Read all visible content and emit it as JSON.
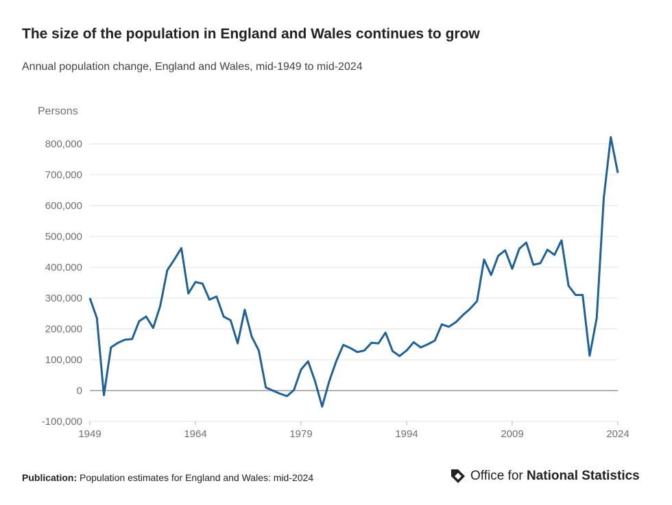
{
  "header": {
    "title": "The size of the population in England and Wales continues to grow",
    "subtitle": "Annual population change, England and Wales, mid-1949 to mid-2024"
  },
  "footer": {
    "publication_label": "Publication:",
    "publication_text": "Population estimates for England and Wales: mid-2024",
    "logo_text_prefix": "Office for ",
    "logo_text_bold": "National Statistics"
  },
  "chart_data": {
    "type": "line",
    "title": "The size of the population in England and Wales continues to grow",
    "subtitle": "Annual population change, England and Wales, mid-1949 to mid-2024",
    "ylabel": "Persons",
    "xlabel": "",
    "ylim": [
      -100000,
      800000
    ],
    "xlim": [
      1949,
      2024
    ],
    "yticks": [
      -100000,
      0,
      100000,
      200000,
      300000,
      400000,
      500000,
      600000,
      700000,
      800000
    ],
    "ytick_labels": [
      "-100,000",
      "0",
      "100,000",
      "200,000",
      "300,000",
      "400,000",
      "500,000",
      "600,000",
      "700,000",
      "800,000"
    ],
    "xticks": [
      1949,
      1964,
      1979,
      1994,
      2009,
      2024
    ],
    "xtick_labels": [
      "1949",
      "1964",
      "1979",
      "1994",
      "2009",
      "2024"
    ],
    "grid": true,
    "color": "#206095",
    "x": [
      1949,
      1950,
      1951,
      1952,
      1953,
      1954,
      1955,
      1956,
      1957,
      1958,
      1959,
      1960,
      1961,
      1962,
      1963,
      1964,
      1965,
      1966,
      1967,
      1968,
      1969,
      1970,
      1971,
      1972,
      1973,
      1974,
      1975,
      1976,
      1977,
      1978,
      1979,
      1980,
      1981,
      1982,
      1983,
      1984,
      1985,
      1986,
      1987,
      1988,
      1989,
      1990,
      1991,
      1992,
      1993,
      1994,
      1995,
      1996,
      1997,
      1998,
      1999,
      2000,
      2001,
      2002,
      2003,
      2004,
      2005,
      2006,
      2007,
      2008,
      2009,
      2010,
      2011,
      2012,
      2013,
      2014,
      2015,
      2016,
      2017,
      2018,
      2019,
      2020,
      2021,
      2022,
      2023,
      2024
    ],
    "values": [
      300000,
      235000,
      -15000,
      140000,
      155000,
      165000,
      167000,
      225000,
      240000,
      203000,
      275000,
      390000,
      425000,
      462000,
      315000,
      352000,
      347000,
      295000,
      305000,
      240000,
      228000,
      153000,
      262000,
      175000,
      130000,
      10000,
      0,
      -10000,
      -18000,
      2000,
      68000,
      95000,
      30000,
      -52000,
      30000,
      95000,
      148000,
      138000,
      125000,
      130000,
      155000,
      153000,
      188000,
      128000,
      112000,
      130000,
      157000,
      140000,
      150000,
      162000,
      215000,
      207000,
      222000,
      245000,
      265000,
      290000,
      425000,
      375000,
      437000,
      455000,
      395000,
      460000,
      480000,
      408000,
      413000,
      457000,
      440000,
      487000,
      340000,
      310000,
      310000,
      113000,
      235000,
      625000,
      822000,
      706000
    ]
  }
}
